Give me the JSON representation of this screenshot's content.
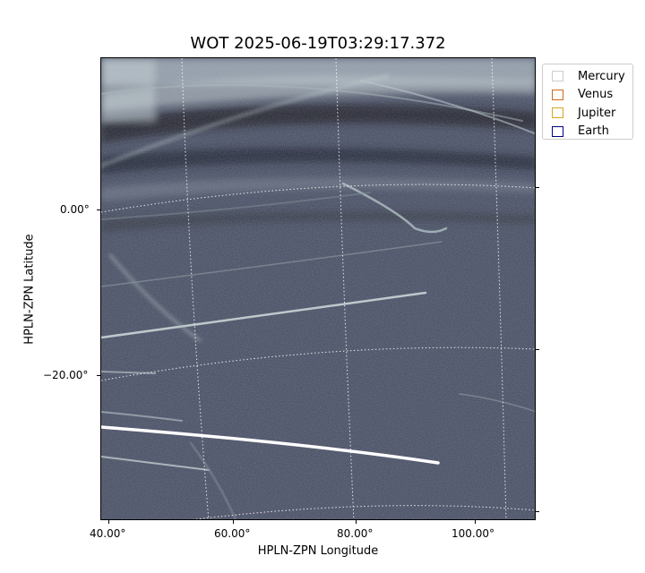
{
  "title": "WOT 2025-06-19T03:29:17.372",
  "axes": {
    "xlabel": "HPLN-ZPN Longitude",
    "ylabel": "HPLN-ZPN Latitude",
    "x_ticks": [
      "40.00°",
      "60.00°",
      "80.00°",
      "100.00°"
    ],
    "y_ticks": [
      "0.00°",
      "−20.00°"
    ]
  },
  "legend": {
    "placement": "upper-right-outside",
    "items": [
      {
        "label": "Mercury",
        "color": "#cccccc"
      },
      {
        "label": "Venus",
        "color": "#d2691e"
      },
      {
        "label": "Jupiter",
        "color": "#daa520"
      },
      {
        "label": "Earth",
        "color": "#000080"
      }
    ]
  },
  "image": {
    "description_colormap": "bone",
    "grid": true
  }
}
